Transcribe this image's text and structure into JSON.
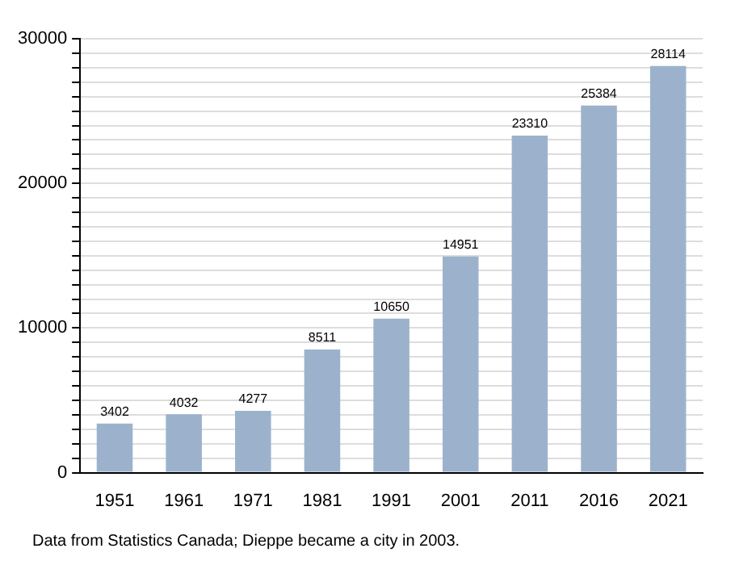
{
  "chart_data": {
    "type": "bar",
    "categories": [
      "1951",
      "1961",
      "1971",
      "1981",
      "1991",
      "2001",
      "2011",
      "2016",
      "2021"
    ],
    "values": [
      3402,
      4032,
      4277,
      8511,
      10650,
      14951,
      23310,
      25384,
      28114
    ],
    "color": "#9cb2cc",
    "data_labels": true,
    "ylim": [
      0,
      30000
    ],
    "yticks": [
      0,
      {
        "value": 1000,
        "label": null
      },
      {
        "value": 2000,
        "label": null
      },
      {
        "value": 3000,
        "label": null
      },
      {
        "value": 4000,
        "label": null
      },
      {
        "value": 5000,
        "label": null
      },
      {
        "value": 6000,
        "label": null
      },
      {
        "value": 7000,
        "label": null
      },
      {
        "value": 8000,
        "label": null
      },
      {
        "value": 9000,
        "label": null
      },
      10000,
      {
        "value": 11000,
        "label": null
      },
      {
        "value": 12000,
        "label": null
      },
      {
        "value": 13000,
        "label": null
      },
      {
        "value": 14000,
        "label": null
      },
      {
        "value": 15000,
        "label": null
      },
      {
        "value": 16000,
        "label": null
      },
      {
        "value": 17000,
        "label": null
      },
      {
        "value": 18000,
        "label": null
      },
      {
        "value": 19000,
        "label": null
      },
      20000,
      {
        "value": 21000,
        "label": null
      },
      {
        "value": 22000,
        "label": null
      },
      {
        "value": 23000,
        "label": null
      },
      {
        "value": 24000,
        "label": null
      },
      {
        "value": 25000,
        "label": null
      },
      {
        "value": 26000,
        "label": null
      },
      {
        "value": 27000,
        "label": null
      },
      {
        "value": 28000,
        "label": null
      },
      {
        "value": 29000,
        "label": null
      },
      30000
    ],
    "grid": "y",
    "annotations": [
      "Data from Statistics Canada; Dieppe became a city in 2003."
    ]
  }
}
